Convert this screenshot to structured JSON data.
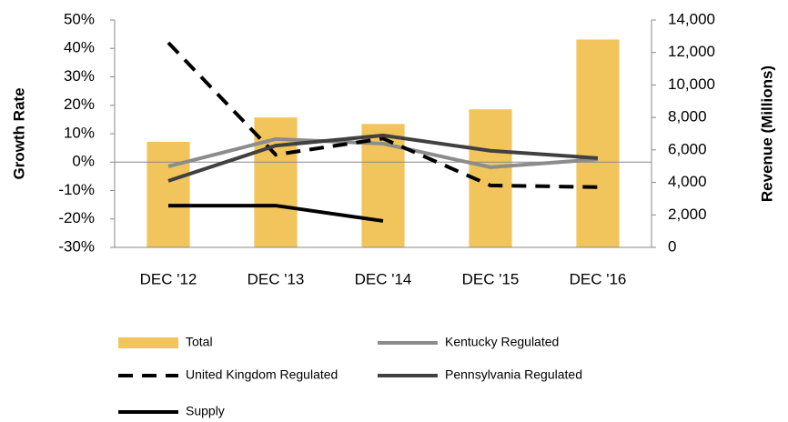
{
  "chart_data": {
    "type": "bar-line",
    "ylabel": "Growth Rate",
    "y2label": "Revenue (Millions)",
    "categories": [
      "DEC '12",
      "DEC '13",
      "DEC '14",
      "DEC '15",
      "DEC '16"
    ],
    "ylim": [
      -30,
      50
    ],
    "yticks": [
      {
        "value": 50,
        "label": "50%"
      },
      {
        "value": 40,
        "label": "40%"
      },
      {
        "value": 30,
        "label": "30%"
      },
      {
        "value": 20,
        "label": "20%"
      },
      {
        "value": 10,
        "label": "10%"
      },
      {
        "value": 0,
        "label": "0%"
      },
      {
        "value": -10,
        "label": "-10%"
      },
      {
        "value": -20,
        "label": "-20%"
      },
      {
        "value": -30,
        "label": "-30%"
      }
    ],
    "y2lim": [
      0,
      14000
    ],
    "y2ticks": [
      {
        "value": 14000,
        "label": "14,000"
      },
      {
        "value": 12000,
        "label": "12,000"
      },
      {
        "value": 10000,
        "label": "10,000"
      },
      {
        "value": 8000,
        "label": "8,000"
      },
      {
        "value": 6000,
        "label": "6,000"
      },
      {
        "value": 4000,
        "label": "4,000"
      },
      {
        "value": 2000,
        "label": "2,000"
      },
      0
    ],
    "series": [
      {
        "name": "Total",
        "kind": "bar",
        "axis": "y2",
        "color": "#f2c55c",
        "values": [
          6500,
          8000,
          7600,
          8500,
          12800
        ]
      },
      {
        "name": "Kentucky Regulated",
        "kind": "line",
        "color": "#8c8c8c",
        "dash": false,
        "values": [
          -1.5,
          8.1,
          6.5,
          -1.8,
          1
        ]
      },
      {
        "name": "United Kingdom Regulated",
        "kind": "line",
        "color": "#000000",
        "dash": true,
        "values": [
          42,
          2.6,
          8.3,
          -8.2,
          -8.8
        ]
      },
      {
        "name": "Pennsylvania Regulated",
        "kind": "line",
        "color": "#404040",
        "dash": false,
        "values": [
          -6.6,
          5.8,
          9.4,
          4,
          1.4
        ]
      },
      {
        "name": "Supply",
        "kind": "line",
        "color": "#000000",
        "dash": false,
        "values": [
          -15.3,
          -15.3,
          -20.7,
          null,
          null
        ]
      }
    ]
  }
}
